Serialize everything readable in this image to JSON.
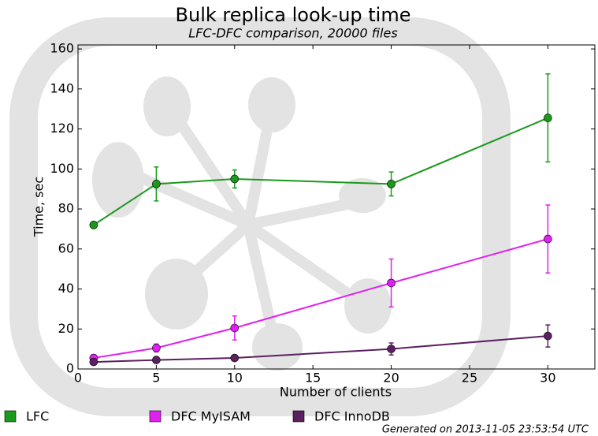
{
  "chart_data": {
    "type": "line",
    "title": "Bulk replica look-up time",
    "subtitle": "LFC-DFC comparison, 20000 files",
    "x_label": "Number of clients",
    "y_label": "Time, sec",
    "footer": "Generated on 2013-11-05 23:53:54 UTC",
    "x": [
      1,
      5,
      10,
      20,
      30
    ],
    "xlim": [
      0,
      33
    ],
    "xticks": [
      0,
      5,
      10,
      15,
      20,
      25,
      30
    ],
    "ylim": [
      0,
      162
    ],
    "yticks": [
      0,
      20,
      40,
      60,
      80,
      100,
      120,
      140,
      160
    ],
    "series": [
      {
        "name": "LFC",
        "color": "#1a9a1a",
        "values": [
          72,
          92.5,
          95,
          92.5,
          125.5
        ],
        "errors": [
          0.5,
          8.5,
          4.5,
          6,
          22
        ]
      },
      {
        "name": "DFC MyISAM",
        "color": "#e020f0",
        "values": [
          5.5,
          10.5,
          20.5,
          43,
          65
        ],
        "errors": [
          0.5,
          2,
          6,
          12,
          17
        ]
      },
      {
        "name": "DFC InnoDB",
        "color": "#5a2060",
        "values": [
          3.5,
          4.5,
          5.5,
          10,
          16.5
        ],
        "errors": [
          0.5,
          0.5,
          0.5,
          3,
          5.5
        ]
      }
    ]
  }
}
